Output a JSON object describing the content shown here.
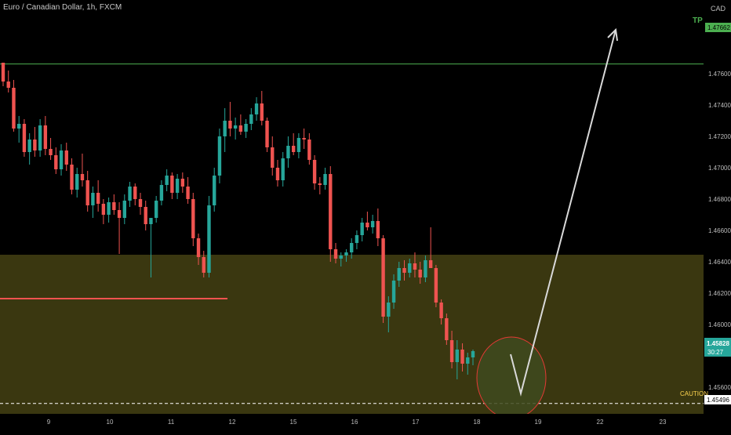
{
  "header": {
    "title": "Euro / Canadian Dollar, 1h, FXCM",
    "currency": "CAD"
  },
  "colors": {
    "background": "#000000",
    "bull": "#26a69a",
    "bear": "#ef5350",
    "zone": "#3a3710",
    "tp_line": "#4caf50",
    "caution": "#ffd54f",
    "support_line": "#ef5350",
    "arrow": "#d9d9d9",
    "circle_stroke": "#e53935",
    "circle_fill": "#3f4a1e"
  },
  "chart_data": {
    "type": "candlestick",
    "symbol": "Euro / Canadian Dollar",
    "timeframe": "1h",
    "source": "FXCM",
    "currency": "CAD",
    "y_ticks": [
      "1.47600",
      "1.47400",
      "1.47200",
      "1.47000",
      "1.46800",
      "1.46600",
      "1.46400",
      "1.46200",
      "1.46000",
      "1.45600"
    ],
    "x_ticks": [
      "9",
      "10",
      "11",
      "12",
      "15",
      "16",
      "17",
      "18",
      "19",
      "22",
      "23"
    ],
    "ylim": [
      1.4532,
      1.4775
    ],
    "tp": {
      "label": "TP",
      "price": "1.47662"
    },
    "caution": {
      "label": "CAUTION",
      "price": "1.45496"
    },
    "current_price": {
      "price": "1.45828",
      "countdown": "30:27"
    },
    "zone": {
      "low": 1.4532,
      "high": 1.46445
    },
    "support_level": 1.46165,
    "forecast": {
      "from": [
        18.0,
        1.4575
      ],
      "bottom": [
        18.7,
        1.4554
      ],
      "target": [
        22.3,
        1.4765
      ]
    },
    "candles_ohlc": [
      [
        1.4767,
        1.4767,
        1.4752,
        1.4755
      ],
      [
        1.4755,
        1.4762,
        1.4748,
        1.4751
      ],
      [
        1.4751,
        1.4756,
        1.4723,
        1.4725
      ],
      [
        1.4725,
        1.4733,
        1.4716,
        1.4728
      ],
      [
        1.4728,
        1.4731,
        1.4707,
        1.471
      ],
      [
        1.471,
        1.4722,
        1.4702,
        1.4718
      ],
      [
        1.4718,
        1.4726,
        1.4707,
        1.4711
      ],
      [
        1.4711,
        1.4731,
        1.4707,
        1.4727
      ],
      [
        1.4727,
        1.4733,
        1.4708,
        1.4712
      ],
      [
        1.4712,
        1.4719,
        1.4705,
        1.4708
      ],
      [
        1.4708,
        1.4713,
        1.4696,
        1.4699
      ],
      [
        1.4699,
        1.4715,
        1.4695,
        1.4711
      ],
      [
        1.4711,
        1.4716,
        1.4698,
        1.4702
      ],
      [
        1.4702,
        1.4706,
        1.4683,
        1.4686
      ],
      [
        1.4686,
        1.47,
        1.4681,
        1.4696
      ],
      [
        1.4696,
        1.4709,
        1.4688,
        1.4692
      ],
      [
        1.4692,
        1.4698,
        1.4672,
        1.4676
      ],
      [
        1.4676,
        1.4688,
        1.4668,
        1.4684
      ],
      [
        1.4684,
        1.4692,
        1.4672,
        1.4677
      ],
      [
        1.4677,
        1.468,
        1.4664,
        1.467
      ],
      [
        1.467,
        1.4681,
        1.4665,
        1.4678
      ],
      [
        1.4678,
        1.4683,
        1.467,
        1.4673
      ],
      [
        1.4673,
        1.4678,
        1.4645,
        1.4668
      ],
      [
        1.4668,
        1.4683,
        1.4664,
        1.4679
      ],
      [
        1.4679,
        1.4691,
        1.4675,
        1.4688
      ],
      [
        1.4688,
        1.469,
        1.4676,
        1.468
      ],
      [
        1.468,
        1.4684,
        1.467,
        1.4675
      ],
      [
        1.4675,
        1.4679,
        1.466,
        1.4664
      ],
      [
        1.4664,
        1.4667,
        1.463,
        1.4668
      ],
      [
        1.4668,
        1.4682,
        1.4665,
        1.4679
      ],
      [
        1.4679,
        1.4692,
        1.4676,
        1.4689
      ],
      [
        1.4689,
        1.4699,
        1.4685,
        1.4695
      ],
      [
        1.4695,
        1.4697,
        1.468,
        1.4684
      ],
      [
        1.4684,
        1.4696,
        1.468,
        1.4693
      ],
      [
        1.4693,
        1.4697,
        1.4684,
        1.4688
      ],
      [
        1.4688,
        1.4694,
        1.4677,
        1.468
      ],
      [
        1.468,
        1.4684,
        1.465,
        1.4655
      ],
      [
        1.4655,
        1.4658,
        1.4638,
        1.4643
      ],
      [
        1.4643,
        1.4647,
        1.463,
        1.4633
      ],
      [
        1.4633,
        1.4682,
        1.463,
        1.4676
      ],
      [
        1.4676,
        1.47,
        1.4672,
        1.4695
      ],
      [
        1.4695,
        1.4725,
        1.469,
        1.472
      ],
      [
        1.472,
        1.4738,
        1.471,
        1.473
      ],
      [
        1.473,
        1.4742,
        1.472,
        1.4725
      ],
      [
        1.4725,
        1.4732,
        1.4718,
        1.4727
      ],
      [
        1.4727,
        1.4734,
        1.4721,
        1.4723
      ],
      [
        1.4723,
        1.4731,
        1.4719,
        1.4728
      ],
      [
        1.4728,
        1.4738,
        1.4724,
        1.4734
      ],
      [
        1.4734,
        1.4745,
        1.473,
        1.4741
      ],
      [
        1.4741,
        1.4749,
        1.4727,
        1.473
      ],
      [
        1.473,
        1.4732,
        1.471,
        1.4713
      ],
      [
        1.4713,
        1.472,
        1.4695,
        1.47
      ],
      [
        1.47,
        1.4705,
        1.4688,
        1.4692
      ],
      [
        1.4692,
        1.471,
        1.4688,
        1.4706
      ],
      [
        1.4706,
        1.472,
        1.47,
        1.4714
      ],
      [
        1.4714,
        1.4722,
        1.4708,
        1.471
      ],
      [
        1.471,
        1.4722,
        1.4706,
        1.4719
      ],
      [
        1.4719,
        1.4725,
        1.4712,
        1.4718
      ],
      [
        1.4718,
        1.4722,
        1.4702,
        1.4705
      ],
      [
        1.4705,
        1.4708,
        1.4686,
        1.469
      ],
      [
        1.469,
        1.4694,
        1.4683,
        1.4689
      ],
      [
        1.4689,
        1.47,
        1.4686,
        1.4696
      ],
      [
        1.4696,
        1.4701,
        1.464,
        1.4648
      ],
      [
        1.4648,
        1.4652,
        1.4639,
        1.4642
      ],
      [
        1.4642,
        1.4646,
        1.4637,
        1.4644
      ],
      [
        1.4644,
        1.4648,
        1.464,
        1.4646
      ],
      [
        1.4646,
        1.4655,
        1.4642,
        1.4652
      ],
      [
        1.4652,
        1.466,
        1.4648,
        1.4657
      ],
      [
        1.4657,
        1.4668,
        1.4653,
        1.4665
      ],
      [
        1.4665,
        1.4672,
        1.466,
        1.4662
      ],
      [
        1.4662,
        1.467,
        1.4658,
        1.4666
      ],
      [
        1.4666,
        1.4674,
        1.465,
        1.4655
      ],
      [
        1.4655,
        1.4657,
        1.4601,
        1.4605
      ],
      [
        1.4605,
        1.4618,
        1.4595,
        1.4614
      ],
      [
        1.4614,
        1.4632,
        1.461,
        1.4628
      ],
      [
        1.4628,
        1.464,
        1.4624,
        1.4636
      ],
      [
        1.4636,
        1.4641,
        1.4628,
        1.4633
      ],
      [
        1.4633,
        1.4642,
        1.463,
        1.4639
      ],
      [
        1.4639,
        1.4646,
        1.463,
        1.4635
      ],
      [
        1.4635,
        1.464,
        1.4626,
        1.463
      ],
      [
        1.463,
        1.4644,
        1.4627,
        1.4641
      ],
      [
        1.4641,
        1.4662,
        1.4638,
        1.4636
      ],
      [
        1.4636,
        1.4638,
        1.4611,
        1.4614
      ],
      [
        1.4614,
        1.4616,
        1.46,
        1.4604
      ],
      [
        1.4604,
        1.4607,
        1.4587,
        1.459
      ],
      [
        1.459,
        1.4596,
        1.4572,
        1.4576
      ],
      [
        1.4576,
        1.459,
        1.4565,
        1.4584
      ],
      [
        1.4584,
        1.4588,
        1.457,
        1.4575
      ],
      [
        1.4575,
        1.4582,
        1.4568,
        1.4579
      ],
      [
        1.4579,
        1.4584,
        1.4574,
        1.4583
      ]
    ]
  }
}
